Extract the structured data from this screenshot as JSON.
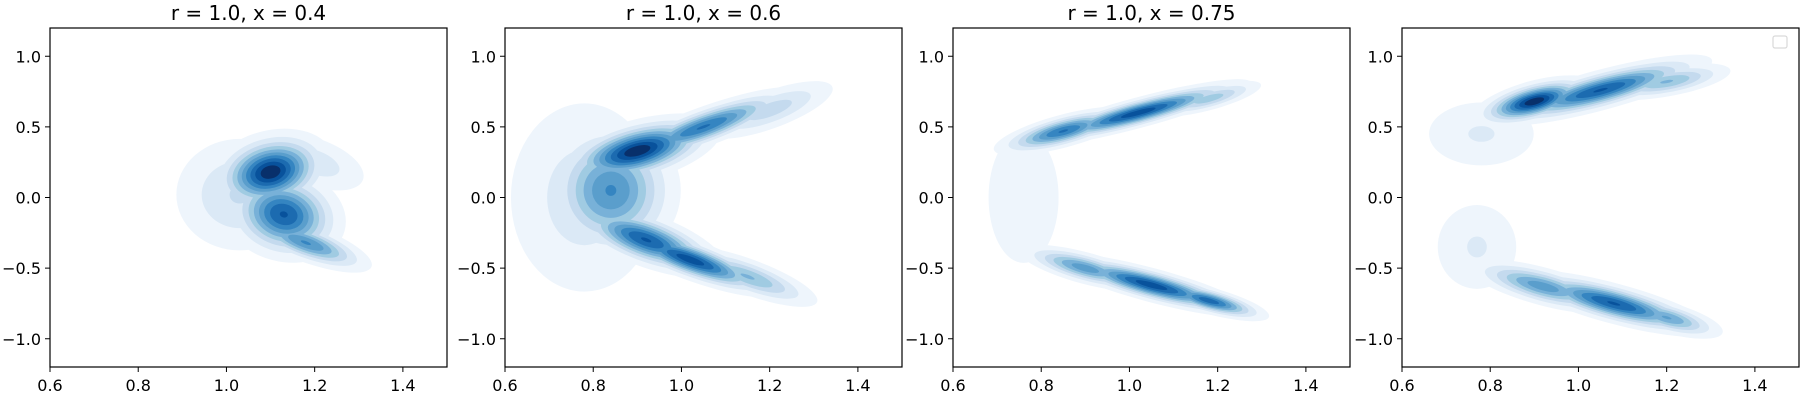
{
  "chart_data": [
    {
      "type": "heatmap",
      "subtype": "kde-filled-contour",
      "title": "r = 1.0, x = 0.4",
      "xlabel": "",
      "ylabel": "",
      "xlim": [
        0.6,
        1.5
      ],
      "ylim": [
        -1.2,
        1.2
      ],
      "xticks": [
        0.6,
        0.8,
        1.0,
        1.2,
        1.4
      ],
      "xtick_labels": [
        "0.6",
        "0.8",
        "1.0",
        "1.2",
        "1.4"
      ],
      "yticks": [
        1.0,
        0.5,
        0.0,
        -0.5,
        -1.0
      ],
      "ytick_labels": [
        "1.0",
        "0.5",
        "0.0",
        "−0.5",
        "−1.0"
      ],
      "colormap": [
        "#eef5fc",
        "#dbe9f6",
        "#c4daee",
        "#a0cbe2",
        "#78b1d8",
        "#5a9ecc",
        "#3585c1",
        "#1c6bb0",
        "#08529c",
        "#08306b"
      ],
      "legend": false,
      "density_blobs": [
        {
          "cx": 1.1,
          "cy": 0.18,
          "sx": 0.06,
          "sy": 0.12,
          "rot": -15,
          "w": 1.0
        },
        {
          "cx": 1.13,
          "cy": -0.12,
          "sx": 0.06,
          "sy": 0.14,
          "rot": 15,
          "w": 0.85
        },
        {
          "cx": 1.18,
          "cy": -0.32,
          "sx": 0.07,
          "sy": 0.06,
          "rot": 20,
          "w": 0.65
        },
        {
          "cx": 1.03,
          "cy": 0.02,
          "sx": 0.08,
          "sy": 0.22,
          "rot": 0,
          "w": 0.25
        },
        {
          "cx": 1.2,
          "cy": 0.25,
          "sx": 0.07,
          "sy": 0.1,
          "rot": 20,
          "w": 0.2
        }
      ]
    },
    {
      "type": "heatmap",
      "subtype": "kde-filled-contour",
      "title": "r = 1.0, x = 0.6",
      "xlabel": "",
      "ylabel": "",
      "xlim": [
        0.6,
        1.5
      ],
      "ylim": [
        -1.2,
        1.2
      ],
      "xticks": [
        0.6,
        0.8,
        1.0,
        1.2,
        1.4
      ],
      "xtick_labels": [
        "0.6",
        "0.8",
        "1.0",
        "1.2",
        "1.4"
      ],
      "yticks": [
        1.0,
        0.5,
        0.0,
        -0.5,
        -1.0
      ],
      "ytick_labels": [
        "1.0",
        "0.5",
        "0.0",
        "−0.5",
        "−1.0"
      ],
      "colormap": [
        "#eef5fc",
        "#dbe9f6",
        "#c4daee",
        "#a0cbe2",
        "#78b1d8",
        "#5a9ecc",
        "#3585c1",
        "#1c6bb0",
        "#08529c",
        "#08306b"
      ],
      "legend": false,
      "density_blobs": [
        {
          "cx": 0.9,
          "cy": 0.33,
          "sx": 0.08,
          "sy": 0.09,
          "rot": -15,
          "w": 1.0
        },
        {
          "cx": 1.05,
          "cy": 0.5,
          "sx": 0.1,
          "sy": 0.06,
          "rot": -20,
          "w": 0.75
        },
        {
          "cx": 0.84,
          "cy": 0.05,
          "sx": 0.07,
          "sy": 0.22,
          "rot": 0,
          "w": 0.65
        },
        {
          "cx": 0.92,
          "cy": -0.3,
          "sx": 0.08,
          "sy": 0.08,
          "rot": 20,
          "w": 0.85
        },
        {
          "cx": 1.02,
          "cy": -0.44,
          "sx": 0.09,
          "sy": 0.06,
          "rot": 20,
          "w": 0.9
        },
        {
          "cx": 1.15,
          "cy": -0.56,
          "sx": 0.08,
          "sy": 0.06,
          "rot": 20,
          "w": 0.45
        },
        {
          "cx": 1.2,
          "cy": 0.62,
          "sx": 0.08,
          "sy": 0.07,
          "rot": -20,
          "w": 0.3
        },
        {
          "cx": 0.78,
          "cy": 0.0,
          "sx": 0.1,
          "sy": 0.4,
          "rot": 0,
          "w": 0.2
        }
      ]
    },
    {
      "type": "heatmap",
      "subtype": "kde-filled-contour",
      "title": "r = 1.0, x = 0.75",
      "xlabel": "",
      "ylabel": "",
      "xlim": [
        0.6,
        1.5
      ],
      "ylim": [
        -1.2,
        1.2
      ],
      "xticks": [
        0.6,
        0.8,
        1.0,
        1.2,
        1.4
      ],
      "xtick_labels": [
        "0.6",
        "0.8",
        "1.0",
        "1.2",
        "1.4"
      ],
      "yticks": [
        1.0,
        0.5,
        0.0,
        -0.5,
        -1.0
      ],
      "ytick_labels": [
        "1.0",
        "0.5",
        "0.0",
        "−0.5",
        "−1.0"
      ],
      "colormap": [
        "#eef5fc",
        "#dbe9f6",
        "#c4daee",
        "#a0cbe2",
        "#78b1d8",
        "#5a9ecc",
        "#3585c1",
        "#1c6bb0",
        "#08529c",
        "#08306b"
      ],
      "legend": false,
      "density_blobs": [
        {
          "cx": 0.85,
          "cy": 0.47,
          "sx": 0.07,
          "sy": 0.05,
          "rot": -15,
          "w": 0.75
        },
        {
          "cx": 1.02,
          "cy": 0.6,
          "sx": 0.11,
          "sy": 0.045,
          "rot": -15,
          "w": 0.9
        },
        {
          "cx": 1.18,
          "cy": 0.7,
          "sx": 0.06,
          "sy": 0.04,
          "rot": -15,
          "w": 0.4
        },
        {
          "cx": 0.9,
          "cy": -0.5,
          "sx": 0.07,
          "sy": 0.05,
          "rot": 15,
          "w": 0.6
        },
        {
          "cx": 1.05,
          "cy": -0.62,
          "sx": 0.1,
          "sy": 0.05,
          "rot": 15,
          "w": 0.9
        },
        {
          "cx": 1.18,
          "cy": -0.73,
          "sx": 0.06,
          "sy": 0.04,
          "rot": 15,
          "w": 0.8
        },
        {
          "cx": 0.76,
          "cy": 0.0,
          "sx": 0.06,
          "sy": 0.35,
          "rot": 0,
          "w": 0.12
        }
      ]
    },
    {
      "type": "heatmap",
      "subtype": "kde-filled-contour",
      "title": "",
      "xlabel": "",
      "ylabel": "",
      "xlim": [
        0.6,
        1.5
      ],
      "ylim": [
        -1.2,
        1.2
      ],
      "xticks": [
        0.6,
        0.8,
        1.0,
        1.2,
        1.4
      ],
      "xtick_labels": [
        "0.6",
        "0.8",
        "1.0",
        "1.2",
        "1.4"
      ],
      "yticks": [
        1.0,
        0.5,
        0.0,
        -0.5,
        -1.0
      ],
      "ytick_labels": [
        "1.0",
        "0.5",
        "0.0",
        "−0.5",
        "−1.0"
      ],
      "colormap": [
        "#eef5fc",
        "#dbe9f6",
        "#c4daee",
        "#a0cbe2",
        "#78b1d8",
        "#5a9ecc",
        "#3585c1",
        "#1c6bb0",
        "#08529c",
        "#08306b"
      ],
      "legend": true,
      "legend_position": "top-right",
      "legend_entries": [],
      "density_blobs": [
        {
          "cx": 0.9,
          "cy": 0.68,
          "sx": 0.06,
          "sy": 0.06,
          "rot": -15,
          "w": 1.0
        },
        {
          "cx": 1.05,
          "cy": 0.76,
          "sx": 0.11,
          "sy": 0.06,
          "rot": -15,
          "w": 0.85
        },
        {
          "cx": 1.2,
          "cy": 0.82,
          "sx": 0.07,
          "sy": 0.05,
          "rot": -10,
          "w": 0.45
        },
        {
          "cx": 0.92,
          "cy": -0.63,
          "sx": 0.08,
          "sy": 0.06,
          "rot": 15,
          "w": 0.6
        },
        {
          "cx": 1.08,
          "cy": -0.75,
          "sx": 0.1,
          "sy": 0.06,
          "rot": 15,
          "w": 0.85
        },
        {
          "cx": 1.2,
          "cy": -0.85,
          "sx": 0.06,
          "sy": 0.05,
          "rot": 15,
          "w": 0.55
        },
        {
          "cx": 0.78,
          "cy": 0.45,
          "sx": 0.08,
          "sy": 0.15,
          "rot": 0,
          "w": 0.15
        },
        {
          "cx": 0.77,
          "cy": -0.35,
          "sx": 0.06,
          "sy": 0.2,
          "rot": 0,
          "w": 0.15
        }
      ]
    }
  ]
}
